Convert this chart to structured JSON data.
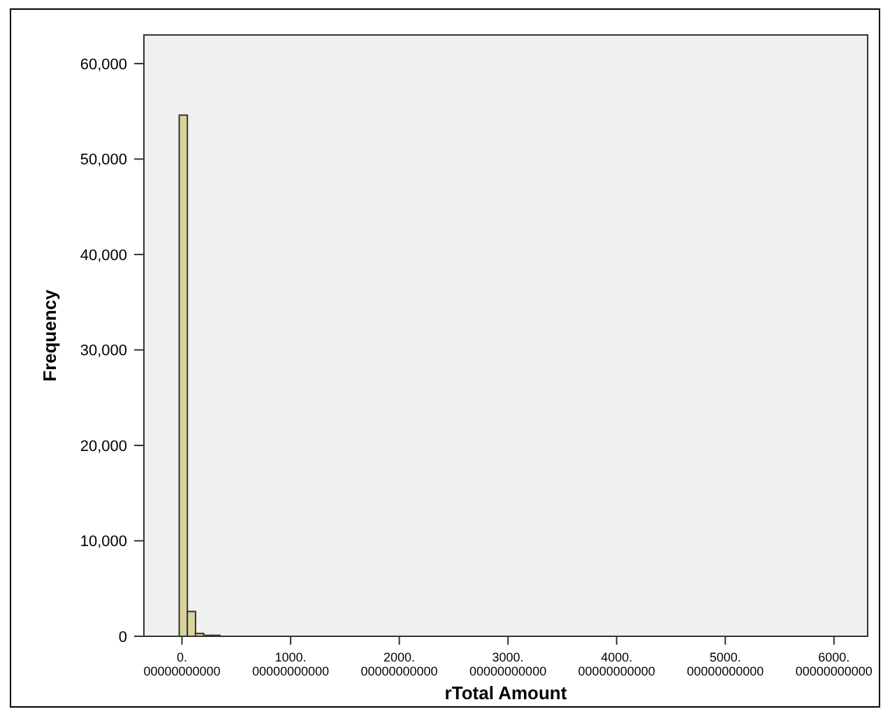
{
  "chart_data": {
    "type": "histogram",
    "xlabel": "rTotal Amount",
    "ylabel": "Frequency",
    "bins": [
      -25,
      50,
      125,
      200,
      275,
      350
    ],
    "values": [
      54600,
      2600,
      300,
      100,
      100
    ],
    "color": "#d8d49c",
    "xlim": [
      -350,
      6310
    ],
    "ylim": [
      0,
      63000
    ],
    "xticks": [
      {
        "value": 0,
        "label": "0.00000000000"
      },
      {
        "value": 1000,
        "label": "1000.00000000000"
      },
      {
        "value": 2000,
        "label": "2000.00000000000"
      },
      {
        "value": 3000,
        "label": "3000.00000000000"
      },
      {
        "value": 4000,
        "label": "4000.00000000000"
      },
      {
        "value": 5000,
        "label": "5000.00000000000"
      },
      {
        "value": 6000,
        "label": "6000.00000000000"
      }
    ],
    "yticks": [
      {
        "value": 0,
        "label": "0"
      },
      {
        "value": 10000,
        "label": "10,000"
      },
      {
        "value": 20000,
        "label": "20,000"
      },
      {
        "value": 30000,
        "label": "30,000"
      },
      {
        "value": 40000,
        "label": "40,000"
      },
      {
        "value": 50000,
        "label": "50,000"
      },
      {
        "value": 60000,
        "label": "60,000"
      }
    ],
    "grid": false
  }
}
